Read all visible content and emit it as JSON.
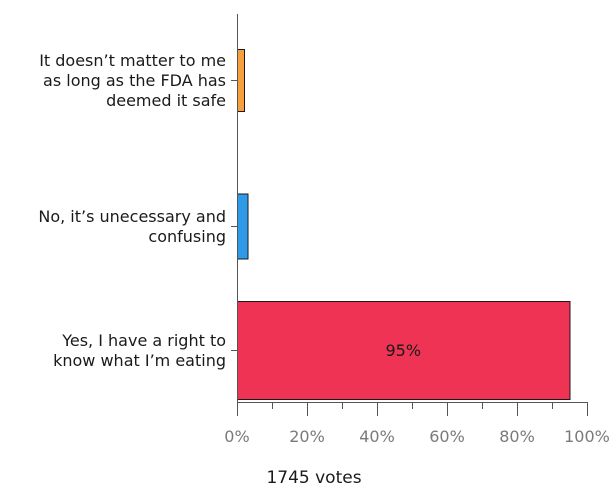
{
  "chart_data": {
    "type": "bar",
    "orientation": "horizontal",
    "categories": [
      [
        "It doesn’t matter to me",
        "as long as the FDA has",
        "deemed it safe"
      ],
      [
        "No, it’s unecessary and",
        "confusing"
      ],
      [
        "Yes, I have a right to",
        "know what I’m eating"
      ]
    ],
    "values": [
      2,
      3,
      95
    ],
    "colors": [
      "#f5a03c",
      "#2f9be8",
      "#ef3355"
    ],
    "data_labels": [
      "",
      "",
      "95%"
    ],
    "xlim": [
      0,
      100
    ],
    "x_ticks": [
      "0%",
      "20%",
      "40%",
      "60%",
      "80%",
      "100%"
    ],
    "x_minor_ticks": [
      10,
      30,
      50,
      70,
      90
    ],
    "total_votes_label": "1745 votes",
    "grid": false,
    "legend": "none",
    "title": "",
    "xlabel": "",
    "ylabel": ""
  }
}
